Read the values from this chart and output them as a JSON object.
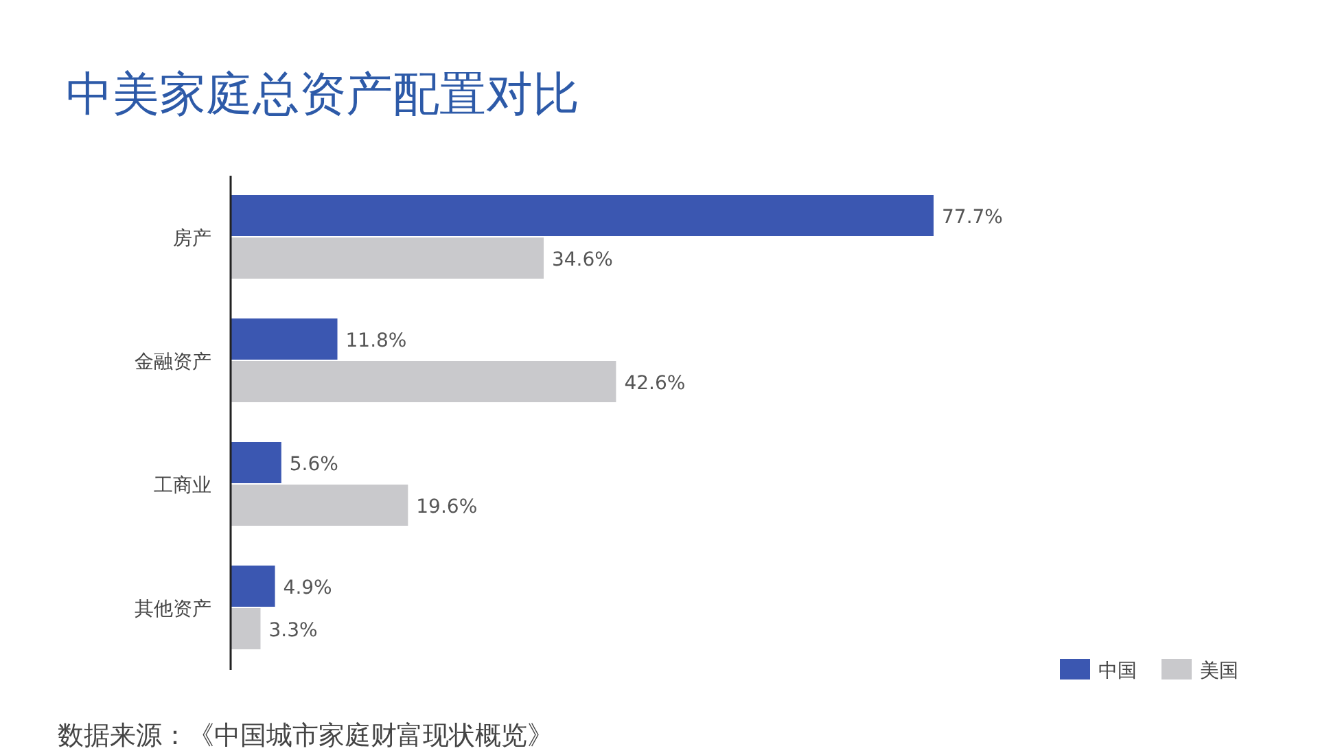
{
  "chart_data": {
    "type": "bar",
    "orientation": "horizontal",
    "title": "中美家庭总资产配置对比",
    "categories": [
      "房产",
      "金融资产",
      "工商业",
      "其他资产"
    ],
    "series": [
      {
        "name": "中国",
        "color": "#3b57b1",
        "values": [
          77.7,
          11.8,
          5.6,
          4.9
        ],
        "value_labels": [
          "77.7%",
          "11.8%",
          "5.6%",
          "4.9%"
        ]
      },
      {
        "name": "美国",
        "color": "#c9c9cc",
        "values": [
          34.6,
          42.6,
          19.6,
          3.3
        ],
        "value_labels": [
          "34.6%",
          "42.6%",
          "19.6%",
          "3.3%"
        ]
      }
    ],
    "legend": "bottom right",
    "annotations": [
      "数据来源：《中国城市家庭财富现状概览》"
    ]
  }
}
